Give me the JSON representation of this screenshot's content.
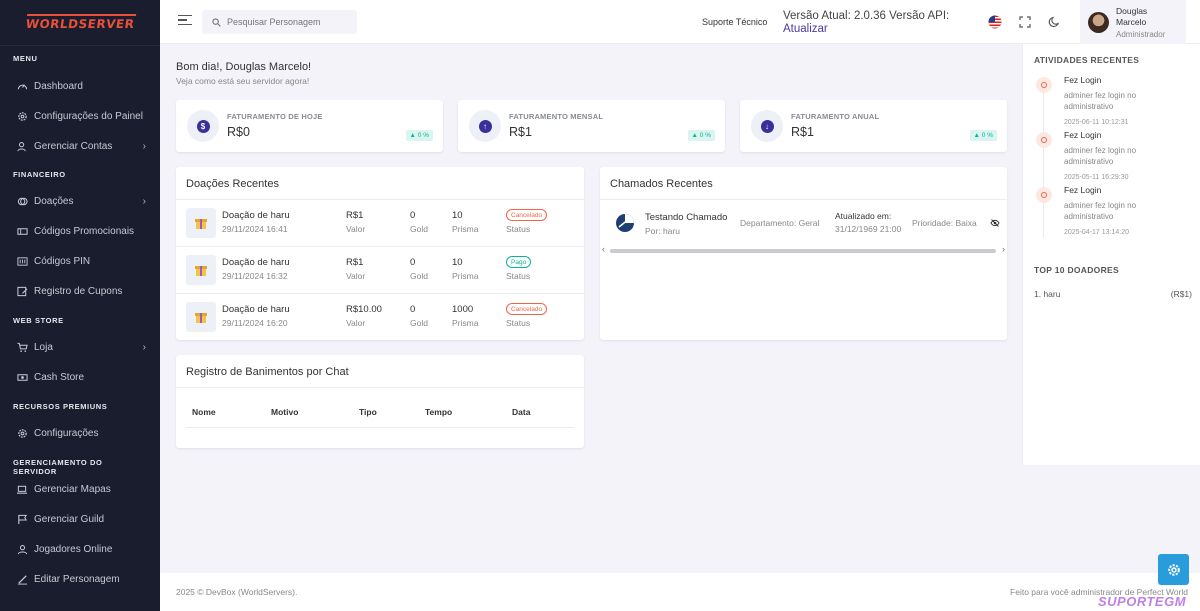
{
  "sidebar": {
    "logo_text": "WORLDSERVER",
    "sections": {
      "menu": "MENU",
      "financeiro": "FINANCEIRO",
      "webstore": "WEB STORE",
      "premium": "RECURSOS PREMIUNS",
      "server": "GERENCIAMENTO DO SERVIDOR"
    },
    "items": {
      "dashboard": "Dashboard",
      "config_painel": "Configurações do Painel",
      "contas": "Gerenciar Contas",
      "doacoes": "Doações",
      "codigos_promo": "Códigos Promocionais",
      "codigos_pin": "Códigos PIN",
      "cupons": "Registro de Cupons",
      "loja": "Loja",
      "cash": "Cash Store",
      "configuracoes": "Configurações",
      "mapas": "Gerenciar Mapas",
      "guild": "Gerenciar Guild",
      "jogadores": "Jogadores Online",
      "personagem": "Editar Personagem"
    }
  },
  "header": {
    "search_placeholder": "Pesquisar Personagem",
    "support": "Suporte Técnico",
    "version": "Versão Atual: 2.0.36 Versão API:",
    "update": "Atualizar",
    "user_name": "Douglas Marcelo",
    "user_role": "Administrador"
  },
  "main": {
    "greeting": "Bom dia!, Douglas Marcelo!",
    "greeting_sub": "Veja como está seu servidor agora!",
    "stats": [
      {
        "label": "FATURAMENTO DE HOJE",
        "value": "R$0",
        "badge": "▲ 0 %"
      },
      {
        "label": "FATURAMENTO MENSAL",
        "value": "R$1",
        "badge": "▲ 0 %"
      },
      {
        "label": "FATURAMENTO ANUAL",
        "value": "R$1",
        "badge": "▲ 0 %"
      }
    ],
    "donations": {
      "title": "Doações Recentes",
      "rows": [
        {
          "name": "Doação de haru",
          "date": "29/11/2024 16:41",
          "valor": "R$1",
          "valor_l": "Valor",
          "gold": "0",
          "gold_l": "Gold",
          "prisma": "10",
          "prisma_l": "Prisma",
          "status": "Cancelado",
          "status_l": "Status"
        },
        {
          "name": "Doação de haru",
          "date": "29/11/2024 16:32",
          "valor": "R$1",
          "valor_l": "Valor",
          "gold": "0",
          "gold_l": "Gold",
          "prisma": "10",
          "prisma_l": "Prisma",
          "status": "Pago",
          "status_l": "Status"
        },
        {
          "name": "Doação de haru",
          "date": "29/11/2024 16:20",
          "valor": "R$10.00",
          "valor_l": "Valor",
          "gold": "0",
          "gold_l": "Gold",
          "prisma": "1000",
          "prisma_l": "Prisma",
          "status": "Cancelado",
          "status_l": "Status"
        }
      ]
    },
    "tickets": {
      "title": "Chamados Recentes",
      "row": {
        "title": "Testando Chamado",
        "by": "Por: haru",
        "department": "Departamento: Geral",
        "updated_label": "Atualizado em:",
        "updated": "31/12/1969 21:00",
        "priority": "Prioridade: Baixa"
      }
    },
    "bans": {
      "title": "Registro de Banimentos por Chat",
      "headers": [
        "Nome",
        "Motivo",
        "Tipo",
        "Tempo",
        "Data"
      ]
    }
  },
  "right": {
    "activity_title": "ATIVIDADES RECENTES",
    "activities": [
      {
        "title": "Fez Login",
        "desc": "adminer fez login no administrativo",
        "time": "2025-06-11 10:12:31"
      },
      {
        "title": "Fez Login",
        "desc": "adminer fez login no administrativo",
        "time": "2025-05-11 16:29:30"
      },
      {
        "title": "Fez Login",
        "desc": "adminer fez login no administrativo",
        "time": "2025-04-17 13:14:20"
      }
    ],
    "top_title": "TOP 10 DOADORES",
    "top": [
      {
        "name": "1. haru",
        "value": "(R$1)"
      }
    ]
  },
  "footer": {
    "left": "2025 © DevBox (WorldServers).",
    "right": "Feito para você administrador de Perfect World"
  },
  "watermark": "SUPORTEGM",
  "colors": {
    "sidebar_bg": "#1a1d2e",
    "accent": "#3b2f9b",
    "success": "#0ab39c",
    "danger": "#f06548",
    "info_button": "#299cdb"
  }
}
